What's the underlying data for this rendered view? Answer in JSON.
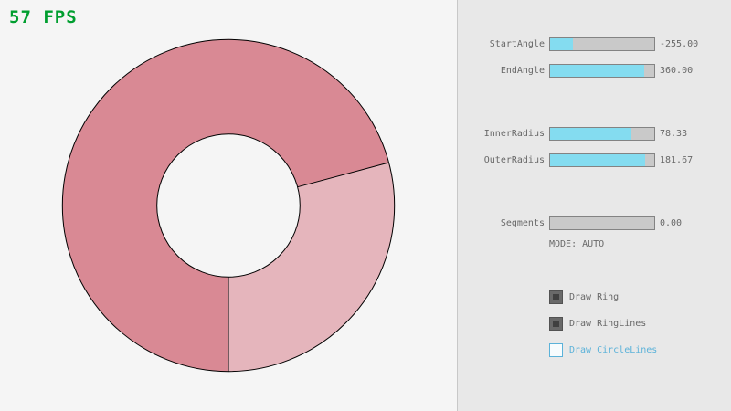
{
  "fps": {
    "text": "57 FPS"
  },
  "colors": {
    "background": "#f5f5f5",
    "panel_background": "#e8e8e8",
    "panel_border": "#c8c8c8",
    "slider_fill": "#84dcf0",
    "slider_track": "#c9c9c9",
    "control_border": "#838383",
    "label_text": "#686868",
    "fps_green": "#009e2f",
    "accent_blue": "#5bb2d9",
    "checkbox_checked": "#696969",
    "outline_black": "#000000"
  },
  "ring": {
    "start_angle": -255.0,
    "end_angle": 360.0,
    "inner_radius": 78.33,
    "outer_radius": 181.67,
    "segments": 0,
    "mode": "AUTO",
    "colors": {
      "single_pass": "#e5b5bc",
      "double_pass": "#d98994"
    }
  },
  "panel": {
    "sliders": [
      {
        "label": "StartAngle",
        "value": "-255.00",
        "fill_pct": 21.7
      },
      {
        "label": "EndAngle",
        "value": "360.00",
        "fill_pct": 90.0
      },
      {
        "label": "InnerRadius",
        "value": "78.33",
        "fill_pct": 78.3
      },
      {
        "label": "OuterRadius",
        "value": "181.67",
        "fill_pct": 90.8
      },
      {
        "label": "Segments",
        "value": "0.00",
        "fill_pct": 0
      }
    ],
    "mode_label": "MODE: AUTO",
    "checkboxes": [
      {
        "label": "Draw Ring",
        "checked": true
      },
      {
        "label": "Draw RingLines",
        "checked": true
      },
      {
        "label": "Draw CircleLines",
        "checked": false
      }
    ]
  }
}
